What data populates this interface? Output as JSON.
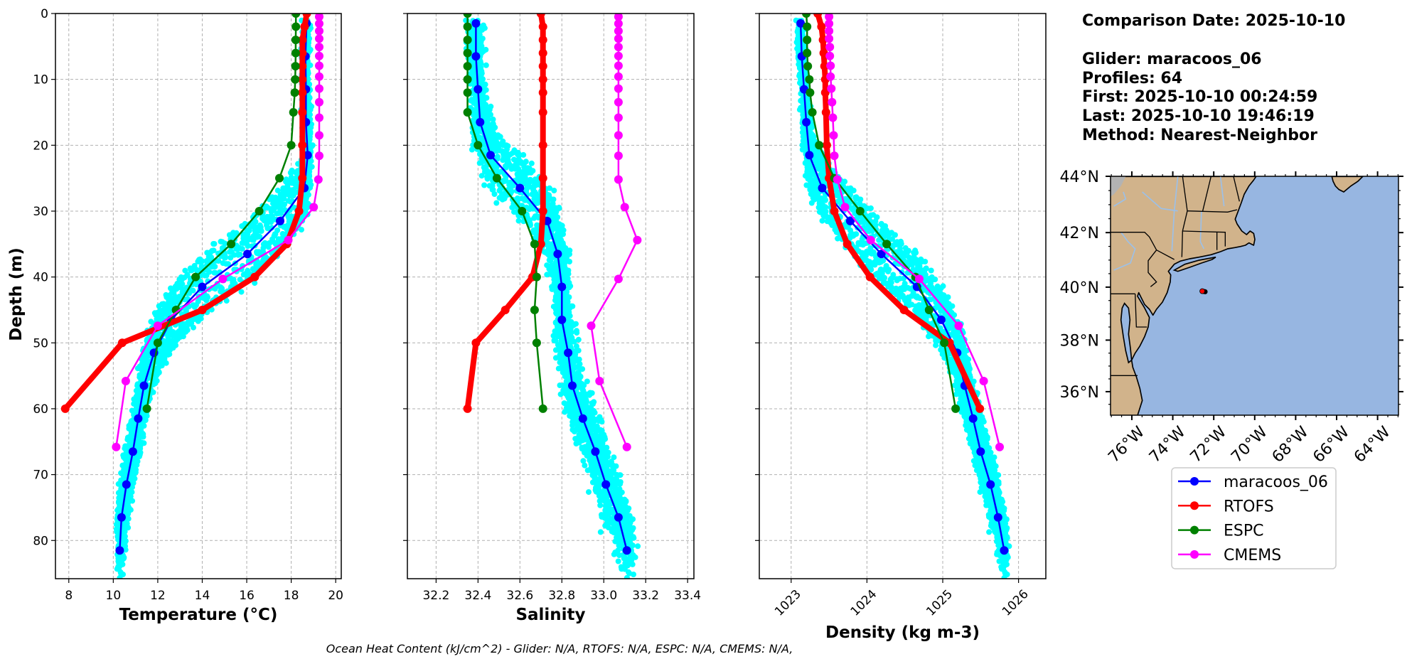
{
  "info": {
    "comparison_date": "Comparison Date: 2025-10-10",
    "glider": "Glider: maracoos_06",
    "profiles": "Profiles: 64",
    "first": "First: 2025-10-10 00:24:59",
    "last": "Last: 2025-10-10 19:46:19",
    "method": "Method: Nearest-Neighbor"
  },
  "footer": "Ocean Heat Content (kJ/cm^2) - Glider: N/A,  RTOFS: N/A,  ESPC: N/A,  CMEMS: N/A,",
  "legend": [
    {
      "label": "maracoos_06",
      "color": "#0000ff"
    },
    {
      "label": "RTOFS",
      "color": "#ff0000"
    },
    {
      "label": "ESPC",
      "color": "#008000"
    },
    {
      "label": "CMEMS",
      "color": "#ff00ff"
    }
  ],
  "colors": {
    "glider_scatter": "#00ffff",
    "land": "#d1b38b",
    "ocean": "#97b6e1",
    "grid": "#b0b0b0"
  },
  "depths": {
    "maracoos_06": [
      1.5,
      6.5,
      11.5,
      16.5,
      21.5,
      26.5,
      31.5,
      36.5,
      41.5,
      46.5,
      51.5,
      56.5,
      61.5,
      66.5,
      71.5,
      76.5,
      81.5
    ],
    "RTOFS": [
      0,
      2,
      4,
      6,
      8,
      10,
      12,
      15,
      20,
      25,
      30,
      35,
      40,
      45,
      50,
      60
    ],
    "ESPC": [
      0,
      2,
      4,
      6,
      8,
      10,
      12,
      15,
      20,
      25,
      30,
      35,
      40,
      45,
      50,
      60
    ],
    "CMEMS": [
      0.49,
      1.54,
      2.65,
      3.82,
      5.08,
      6.44,
      7.93,
      9.57,
      11.4,
      13.47,
      15.81,
      18.5,
      21.6,
      25.2,
      29.4,
      34.4,
      40.3,
      47.4,
      55.8,
      65.8
    ]
  },
  "chart_data": [
    {
      "type": "line",
      "xlabel": "Temperature (°C)",
      "ylabel": "Depth (m)",
      "xlim": [
        7.4,
        20.25
      ],
      "ylim": [
        85.8,
        0
      ],
      "xticks": [
        "8",
        "10",
        "12",
        "14",
        "16",
        "18",
        "20"
      ],
      "yticks": [
        "0",
        "10",
        "20",
        "30",
        "40",
        "50",
        "60",
        "70",
        "80"
      ],
      "grid": true,
      "series": [
        {
          "name": "maracoos_06",
          "values": [
            18.69,
            18.64,
            18.66,
            18.66,
            18.74,
            18.59,
            17.5,
            16.03,
            14.0,
            12.6,
            11.83,
            11.38,
            11.12,
            10.88,
            10.59,
            10.37,
            10.29
          ]
        },
        {
          "name": "RTOFS",
          "values": [
            18.7,
            18.6,
            18.5,
            18.5,
            18.5,
            18.5,
            18.5,
            18.5,
            18.5,
            18.5,
            18.35,
            17.8,
            16.36,
            14.0,
            10.4,
            7.84
          ]
        },
        {
          "name": "ESPC",
          "values": [
            18.21,
            18.21,
            18.2,
            18.2,
            18.19,
            18.18,
            18.16,
            18.1,
            18.0,
            17.47,
            16.56,
            15.3,
            13.7,
            12.82,
            12.0,
            11.51
          ]
        },
        {
          "name": "CMEMS",
          "values": [
            19.26,
            19.26,
            19.26,
            19.26,
            19.26,
            19.26,
            19.26,
            19.26,
            19.26,
            19.26,
            19.26,
            19.26,
            19.26,
            19.22,
            19.01,
            17.87,
            14.92,
            12.0,
            10.56,
            10.13
          ]
        }
      ]
    },
    {
      "type": "line",
      "xlabel": "Salinity",
      "xlim": [
        32.063,
        33.43
      ],
      "ylim": [
        85.8,
        0
      ],
      "xticks": [
        "32.2",
        "32.4",
        "32.6",
        "32.8",
        "33.0",
        "33.2",
        "33.4"
      ],
      "grid": true,
      "series": [
        {
          "name": "maracoos_06",
          "values": [
            32.39,
            32.39,
            32.4,
            32.41,
            32.46,
            32.6,
            32.73,
            32.78,
            32.8,
            32.8,
            32.83,
            32.85,
            32.9,
            32.96,
            33.01,
            33.07,
            33.11
          ]
        },
        {
          "name": "RTOFS",
          "values": [
            32.7,
            32.71,
            32.71,
            32.71,
            32.71,
            32.71,
            32.71,
            32.71,
            32.71,
            32.71,
            32.71,
            32.7,
            32.66,
            32.53,
            32.39,
            32.35
          ]
        },
        {
          "name": "ESPC",
          "values": [
            32.35,
            32.35,
            32.35,
            32.35,
            32.35,
            32.35,
            32.35,
            32.35,
            32.4,
            32.49,
            32.61,
            32.67,
            32.68,
            32.67,
            32.68,
            32.71
          ]
        },
        {
          "name": "CMEMS",
          "values": [
            33.07,
            33.07,
            33.07,
            33.07,
            33.07,
            33.07,
            33.07,
            33.07,
            33.07,
            33.07,
            33.07,
            33.07,
            33.07,
            33.07,
            33.1,
            33.16,
            33.07,
            32.94,
            32.98,
            33.11
          ]
        }
      ]
    },
    {
      "type": "line",
      "xlabel": "Density (kg m-3)",
      "xlim": [
        1022.58,
        1026.36
      ],
      "ylim": [
        85.8,
        0
      ],
      "xticks": [
        "1023",
        "1024",
        "1025",
        "1026"
      ],
      "grid": true,
      "series": [
        {
          "name": "maracoos_06",
          "values": [
            1023.125,
            1023.14,
            1023.17,
            1023.2,
            1023.24,
            1023.41,
            1023.78,
            1024.19,
            1024.66,
            1024.98,
            1025.19,
            1025.29,
            1025.4,
            1025.5,
            1025.63,
            1025.73,
            1025.81
          ]
        },
        {
          "name": "RTOFS",
          "values": [
            1023.35,
            1023.4,
            1023.42,
            1023.43,
            1023.44,
            1023.45,
            1023.45,
            1023.46,
            1023.47,
            1023.5,
            1023.57,
            1023.74,
            1024.04,
            1024.49,
            1025.09,
            1025.49
          ]
        },
        {
          "name": "ESPC",
          "values": [
            1023.2,
            1023.21,
            1023.21,
            1023.21,
            1023.22,
            1023.24,
            1023.25,
            1023.28,
            1023.37,
            1023.57,
            1023.91,
            1024.26,
            1024.64,
            1024.82,
            1025.02,
            1025.17
          ]
        },
        {
          "name": "CMEMS",
          "values": [
            1023.5,
            1023.5,
            1023.5,
            1023.5,
            1023.51,
            1023.51,
            1023.52,
            1023.52,
            1023.53,
            1023.54,
            1023.55,
            1023.56,
            1023.57,
            1023.61,
            1023.71,
            1024.05,
            1024.69,
            1025.21,
            1025.54,
            1025.75
          ]
        }
      ]
    }
  ],
  "map": {
    "projection": "mercator",
    "lon_range": [
      -77.04,
      -62.98
    ],
    "lat_range": [
      35.07,
      44.0
    ],
    "lat_ticks": [
      "36°N",
      "38°N",
      "40°N",
      "42°N",
      "44°N"
    ],
    "lon_ticks": [
      "76°W",
      "74°W",
      "72°W",
      "70°W",
      "68°W",
      "66°W",
      "64°W"
    ],
    "glider_position": {
      "lon": -72.56,
      "lat": 39.85
    },
    "glider_track_end": {
      "lon": -72.42,
      "lat": 39.83
    }
  }
}
